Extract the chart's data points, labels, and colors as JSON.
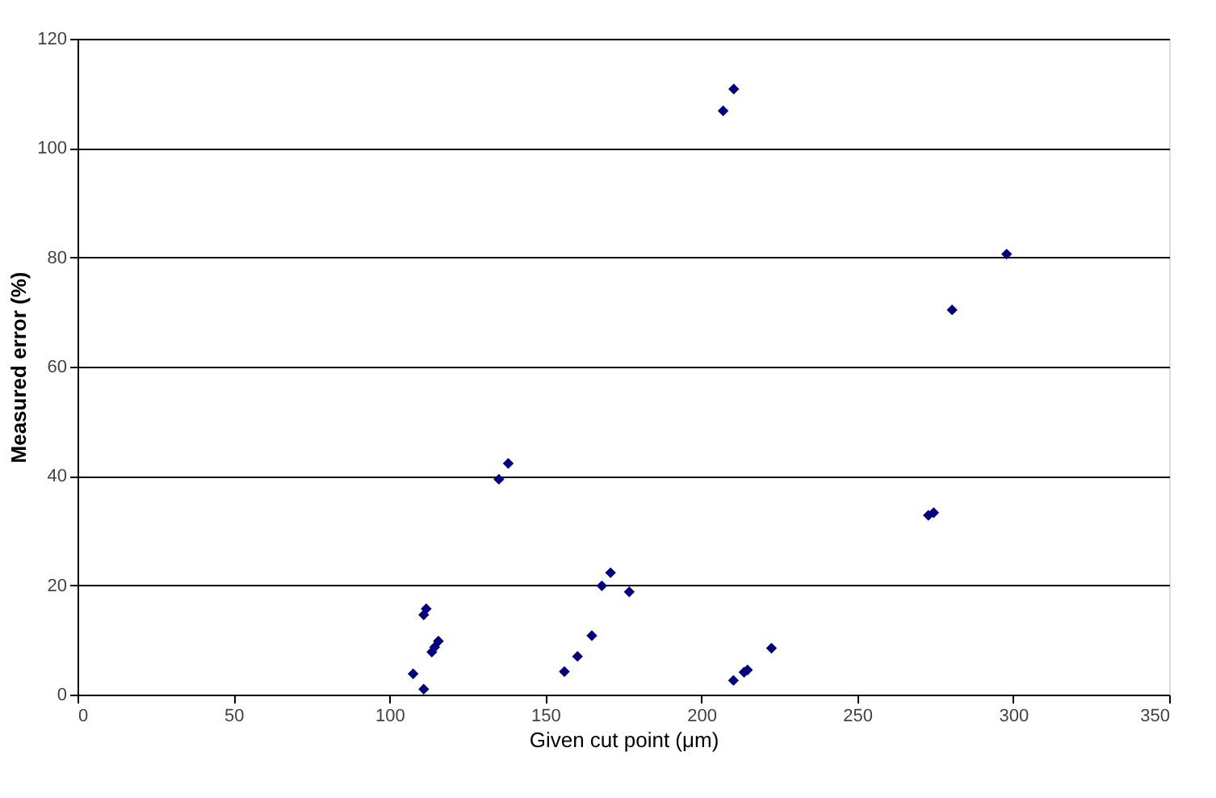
{
  "chart_data": {
    "type": "scatter",
    "xlabel": "Given cut point (μm)",
    "ylabel": "Measured error (%)",
    "x": [
      107.6,
      111,
      111,
      111.8,
      113.6,
      114.5,
      115.7,
      135.1,
      138.1,
      156.1,
      160.3,
      164.9,
      168.1,
      170.9,
      176.9,
      207,
      210.4,
      210.3,
      213.7,
      214.8,
      222.5,
      272.8,
      274.5,
      280.4,
      297.9
    ],
    "series": [
      {
        "color": "#000080",
        "values": [
          3.8,
          1.0,
          14.6,
          15.7,
          7.8,
          8.7,
          9.8,
          39.4,
          42.3,
          4.2,
          7.0,
          10.8,
          19.9,
          22.3,
          18.8,
          106.8,
          110.8,
          2.6,
          4.1,
          4.5,
          8.5,
          32.8,
          33.3,
          70.4,
          80.6
        ]
      }
    ],
    "xlim": [
      0,
      350
    ],
    "xticks": [
      0,
      50,
      100,
      150,
      200,
      250,
      300,
      350
    ],
    "ylim": [
      0,
      120
    ],
    "yticks": [
      0,
      20,
      40,
      60,
      80,
      100,
      120
    ],
    "grid": "y",
    "marker": "diamond"
  }
}
